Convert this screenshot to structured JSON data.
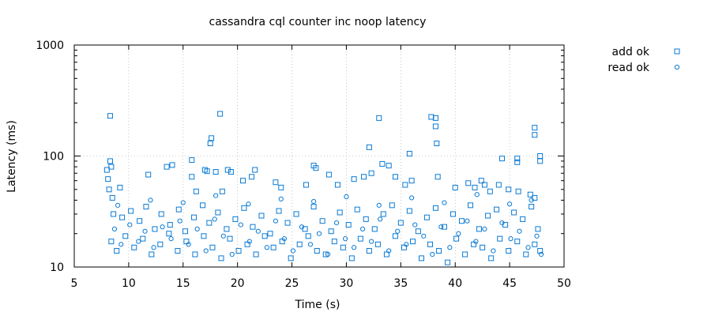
{
  "chart_data": {
    "type": "scatter",
    "title": "cassandra cql counter inc noop latency",
    "xlabel": "Time (s)",
    "ylabel": "Latency (ms)",
    "xlim": [
      5,
      50
    ],
    "ylim": [
      10,
      1000
    ],
    "yscale": "log",
    "x_ticks": [
      "5",
      "10",
      "15",
      "20",
      "25",
      "30",
      "35",
      "40",
      "45",
      "50"
    ],
    "y_ticks": [
      "10",
      "100",
      "1000"
    ],
    "grid": true,
    "legend_position": "top-right",
    "colors": {
      "series": "#0a7ad4",
      "axes": "#000000",
      "grid": "#a0a0a0"
    },
    "series": [
      {
        "name": "add ok",
        "marker": "square",
        "points": [
          [
            8.3,
            230
          ],
          [
            18.4,
            240
          ],
          [
            17.6,
            145
          ],
          [
            17.5,
            130
          ],
          [
            33.0,
            220
          ],
          [
            37.8,
            225
          ],
          [
            38.2,
            220
          ],
          [
            38.2,
            185
          ],
          [
            38.3,
            130
          ],
          [
            32.1,
            120
          ],
          [
            35.8,
            105
          ],
          [
            47.3,
            180
          ],
          [
            47.3,
            155
          ],
          [
            47.8,
            100
          ],
          [
            47.8,
            90
          ],
          [
            44.3,
            95
          ],
          [
            45.7,
            95
          ],
          [
            45.7,
            88
          ],
          [
            8.0,
            75
          ],
          [
            8.1,
            62
          ],
          [
            8.3,
            90
          ],
          [
            8.4,
            80
          ],
          [
            8.2,
            50
          ],
          [
            8.5,
            42
          ],
          [
            9.2,
            52
          ],
          [
            11.8,
            68
          ],
          [
            13.5,
            80
          ],
          [
            14.0,
            83
          ],
          [
            15.8,
            92
          ],
          [
            15.8,
            65
          ],
          [
            16.2,
            48
          ],
          [
            17.0,
            75
          ],
          [
            17.2,
            73
          ],
          [
            18.0,
            72
          ],
          [
            18.6,
            48
          ],
          [
            19.1,
            75
          ],
          [
            19.4,
            72
          ],
          [
            20.5,
            60
          ],
          [
            21.6,
            75
          ],
          [
            21.3,
            65
          ],
          [
            23.5,
            58
          ],
          [
            24.0,
            52
          ],
          [
            26.3,
            55
          ],
          [
            27.0,
            82
          ],
          [
            27.2,
            78
          ],
          [
            28.4,
            68
          ],
          [
            29.2,
            55
          ],
          [
            30.7,
            62
          ],
          [
            31.6,
            65
          ],
          [
            32.3,
            70
          ],
          [
            33.3,
            85
          ],
          [
            33.9,
            82
          ],
          [
            34.5,
            65
          ],
          [
            35.4,
            55
          ],
          [
            36.0,
            60
          ],
          [
            38.4,
            65
          ],
          [
            40.0,
            52
          ],
          [
            41.2,
            57
          ],
          [
            41.8,
            52
          ],
          [
            42.4,
            60
          ],
          [
            42.7,
            55
          ],
          [
            43.2,
            48
          ],
          [
            44.0,
            55
          ],
          [
            44.9,
            50
          ],
          [
            45.8,
            48
          ],
          [
            46.9,
            45
          ],
          [
            47.3,
            42
          ],
          [
            8.6,
            30
          ],
          [
            9.4,
            28
          ],
          [
            10.2,
            32
          ],
          [
            11.0,
            26
          ],
          [
            11.6,
            35
          ],
          [
            12.4,
            22
          ],
          [
            13.0,
            30
          ],
          [
            13.8,
            24
          ],
          [
            14.6,
            33
          ],
          [
            15.2,
            21
          ],
          [
            16.0,
            28
          ],
          [
            16.8,
            36
          ],
          [
            17.4,
            25
          ],
          [
            18.2,
            31
          ],
          [
            19.0,
            22
          ],
          [
            19.8,
            27
          ],
          [
            20.6,
            34
          ],
          [
            21.4,
            23
          ],
          [
            22.2,
            29
          ],
          [
            23.0,
            20
          ],
          [
            23.8,
            32
          ],
          [
            24.6,
            25
          ],
          [
            25.4,
            30
          ],
          [
            26.2,
            22
          ],
          [
            27.0,
            35
          ],
          [
            27.8,
            26
          ],
          [
            28.6,
            21
          ],
          [
            29.4,
            31
          ],
          [
            30.2,
            24
          ],
          [
            31.0,
            33
          ],
          [
            31.8,
            27
          ],
          [
            32.6,
            22
          ],
          [
            33.4,
            30
          ],
          [
            34.2,
            36
          ],
          [
            35.0,
            25
          ],
          [
            35.8,
            32
          ],
          [
            36.6,
            21
          ],
          [
            37.4,
            28
          ],
          [
            38.2,
            34
          ],
          [
            39.0,
            23
          ],
          [
            39.8,
            30
          ],
          [
            40.6,
            26
          ],
          [
            41.4,
            36
          ],
          [
            42.2,
            22
          ],
          [
            43.0,
            29
          ],
          [
            43.8,
            33
          ],
          [
            44.6,
            24
          ],
          [
            45.4,
            31
          ],
          [
            46.2,
            27
          ],
          [
            47.0,
            35
          ],
          [
            47.6,
            22
          ],
          [
            8.4,
            17
          ],
          [
            8.9,
            14
          ],
          [
            9.7,
            19
          ],
          [
            10.5,
            15
          ],
          [
            11.3,
            18
          ],
          [
            12.1,
            13
          ],
          [
            12.9,
            16
          ],
          [
            13.7,
            20
          ],
          [
            14.5,
            14
          ],
          [
            15.3,
            17
          ],
          [
            16.1,
            13
          ],
          [
            16.9,
            19
          ],
          [
            17.7,
            15
          ],
          [
            18.5,
            12
          ],
          [
            19.3,
            18
          ],
          [
            20.1,
            14
          ],
          [
            20.9,
            16
          ],
          [
            21.7,
            13
          ],
          [
            22.5,
            19
          ],
          [
            23.3,
            15
          ],
          [
            24.1,
            17
          ],
          [
            24.9,
            12
          ],
          [
            25.7,
            16
          ],
          [
            26.5,
            19
          ],
          [
            27.3,
            14
          ],
          [
            28.1,
            13
          ],
          [
            28.9,
            17
          ],
          [
            29.7,
            15
          ],
          [
            30.5,
            12
          ],
          [
            31.3,
            18
          ],
          [
            32.1,
            14
          ],
          [
            32.9,
            16
          ],
          [
            33.7,
            13
          ],
          [
            34.5,
            19
          ],
          [
            35.3,
            15
          ],
          [
            36.1,
            17
          ],
          [
            36.9,
            12
          ],
          [
            37.7,
            16
          ],
          [
            38.5,
            14
          ],
          [
            39.3,
            11
          ],
          [
            40.1,
            18
          ],
          [
            40.9,
            13
          ],
          [
            41.7,
            16
          ],
          [
            42.5,
            15
          ],
          [
            43.3,
            12
          ],
          [
            44.1,
            18
          ],
          [
            44.9,
            14
          ],
          [
            45.7,
            17
          ],
          [
            46.5,
            13
          ],
          [
            47.3,
            16
          ],
          [
            47.8,
            14
          ]
        ]
      },
      {
        "name": "read ok",
        "marker": "circle",
        "points": [
          [
            8.7,
            22
          ],
          [
            9.3,
            16
          ],
          [
            10.1,
            24
          ],
          [
            10.9,
            17
          ],
          [
            11.5,
            21
          ],
          [
            12.3,
            15
          ],
          [
            13.1,
            23
          ],
          [
            13.9,
            18
          ],
          [
            14.7,
            26
          ],
          [
            15.5,
            16
          ],
          [
            16.3,
            22
          ],
          [
            17.1,
            14
          ],
          [
            17.9,
            27
          ],
          [
            18.7,
            19
          ],
          [
            19.5,
            13
          ],
          [
            20.3,
            24
          ],
          [
            21.1,
            17
          ],
          [
            21.9,
            21
          ],
          [
            22.7,
            15
          ],
          [
            23.5,
            26
          ],
          [
            24.3,
            18
          ],
          [
            25.1,
            14
          ],
          [
            25.9,
            23
          ],
          [
            26.7,
            16
          ],
          [
            27.5,
            20
          ],
          [
            28.3,
            13
          ],
          [
            29.1,
            25
          ],
          [
            29.9,
            18
          ],
          [
            30.7,
            15
          ],
          [
            31.5,
            22
          ],
          [
            32.3,
            17
          ],
          [
            33.1,
            27
          ],
          [
            33.9,
            14
          ],
          [
            34.7,
            21
          ],
          [
            35.5,
            16
          ],
          [
            36.3,
            24
          ],
          [
            37.1,
            19
          ],
          [
            37.9,
            13
          ],
          [
            38.7,
            23
          ],
          [
            39.5,
            15
          ],
          [
            40.3,
            20
          ],
          [
            41.1,
            26
          ],
          [
            41.9,
            17
          ],
          [
            42.7,
            22
          ],
          [
            43.5,
            14
          ],
          [
            44.3,
            25
          ],
          [
            45.1,
            18
          ],
          [
            45.9,
            21
          ],
          [
            46.7,
            15
          ],
          [
            47.5,
            19
          ],
          [
            47.9,
            13
          ],
          [
            9.0,
            36
          ],
          [
            12.0,
            40
          ],
          [
            15.0,
            38
          ],
          [
            18.0,
            44
          ],
          [
            21.0,
            37
          ],
          [
            24.0,
            41
          ],
          [
            27.0,
            39
          ],
          [
            30.0,
            43
          ],
          [
            33.0,
            36
          ],
          [
            36.0,
            42
          ],
          [
            39.0,
            38
          ],
          [
            42.0,
            45
          ],
          [
            45.0,
            37
          ],
          [
            47.0,
            40
          ]
        ]
      }
    ]
  }
}
